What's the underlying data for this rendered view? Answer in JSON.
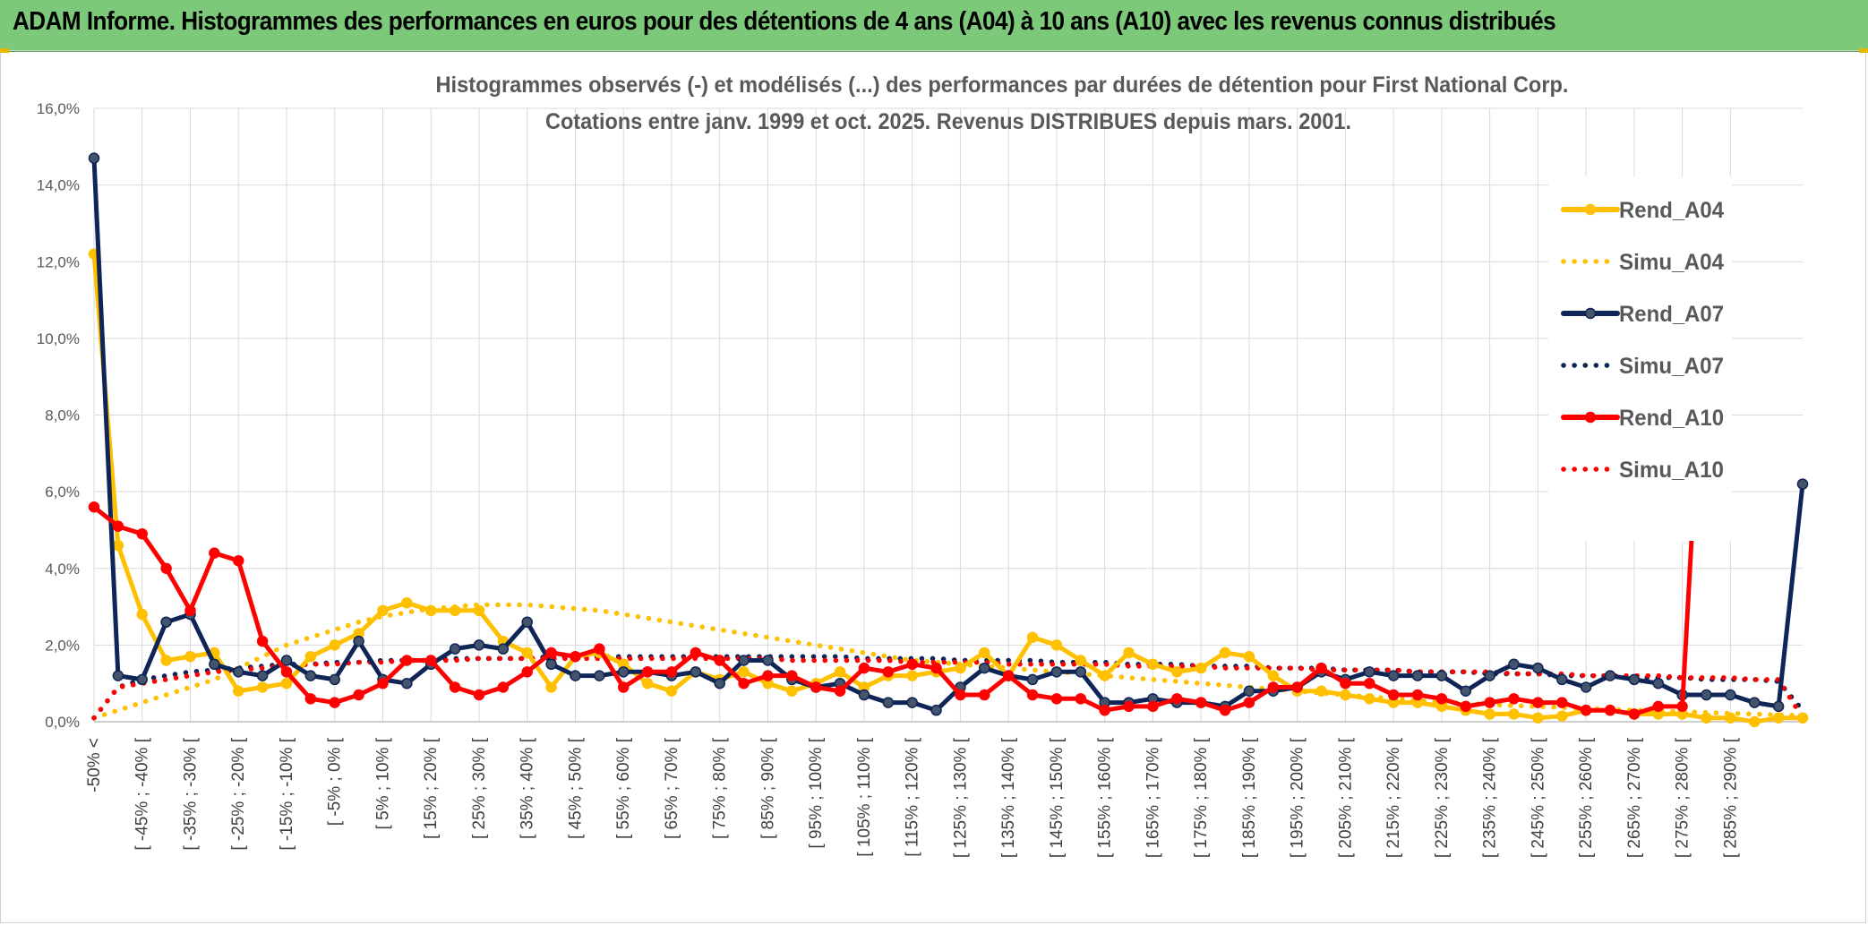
{
  "banner": {
    "title": "ADAM Informe. Histogrammes des performances en euros pour des détentions de 4 ans (A04) à 10 ans (A10) avec les revenus connus distribués"
  },
  "chart_data": {
    "type": "line",
    "title": "Histogrammes observés (-) et modélisés (...) des performances par durées de détention pour First National Corp.",
    "subtitle": "Cotations entre janv. 1999 et oct. 2025. Revenus DISTRIBUES depuis mars. 2001.",
    "ylim": [
      0,
      16
    ],
    "yticks": [
      "0,0%",
      "2,0%",
      "4,0%",
      "6,0%",
      "8,0%",
      "10,0%",
      "12,0%",
      "14,0%",
      "16,0%"
    ],
    "x_tick_labels": [
      "-50% <",
      "[ -45% ; -40% [",
      "[ -35% ; -30% [",
      "[ -25% ; -20% [",
      "[ -15% ; -10% [",
      "[ -5% ; 0% [",
      "[ 5% ; 10% [",
      "[ 15% ; 20% [",
      "[ 25% ; 30% [",
      "[ 35% ; 40% [",
      "[ 45% ; 50% [",
      "[ 55% ; 60% [",
      "[ 65% ; 70% [",
      "[ 75% ; 80% [",
      "[ 85% ; 90% [",
      "[ 95% ; 100% [",
      "[ 105% ; 110% [",
      "[ 115% ; 120% [",
      "[ 125% ; 130% [",
      "[ 135% ; 140% [",
      "[ 145% ; 150% [",
      "[ 155% ; 160% [",
      "[ 165% ; 170% [",
      "[ 175% ; 180% [",
      "[ 185% ; 190% [",
      "[ 195% ; 200% [",
      "[ 205% ; 210% [",
      "[ 215% ; 220% [",
      "[ 225% ; 230% [",
      "[ 235% ; 240% [",
      "[ 245% ; 250% [",
      "[ 255% ; 260% [",
      "[ 265% ; 270% [",
      "[ 275% ; 280% [",
      "[ 285% ; 290% ["
    ],
    "grid": true,
    "legend_position": "right",
    "series": [
      {
        "name": "Rend_A04",
        "style": "solid",
        "color": "#ffc000",
        "values": [
          12.2,
          4.6,
          2.8,
          1.6,
          1.7,
          1.8,
          0.8,
          0.9,
          1.0,
          1.7,
          2.0,
          2.3,
          2.9,
          3.1,
          2.9,
          2.9,
          2.9,
          2.1,
          1.8,
          0.9,
          1.7,
          1.8,
          1.5,
          1.0,
          0.8,
          1.3,
          1.1,
          1.3,
          1.0,
          0.8,
          1.0,
          1.3,
          0.9,
          1.2,
          1.2,
          1.3,
          1.4,
          1.8,
          1.2,
          2.2,
          2.0,
          1.6,
          1.2,
          1.8,
          1.5,
          1.3,
          1.4,
          1.8,
          1.7,
          1.2,
          0.8,
          0.8,
          0.7,
          0.6,
          0.5,
          0.5,
          0.4,
          0.3,
          0.2,
          0.2,
          0.1,
          0.15,
          0.3,
          0.3,
          0.2,
          0.2,
          0.2,
          0.1,
          0.1,
          0.0,
          0.1,
          0.1
        ]
      },
      {
        "name": "Simu_A04",
        "style": "dotted",
        "color": "#ffc000",
        "values": [
          0.1,
          0.3,
          0.5,
          0.7,
          0.9,
          1.1,
          1.4,
          1.7,
          2.0,
          2.2,
          2.4,
          2.6,
          2.75,
          2.85,
          2.95,
          3.0,
          3.05,
          3.05,
          3.05,
          3.0,
          2.95,
          2.9,
          2.8,
          2.7,
          2.6,
          2.5,
          2.4,
          2.3,
          2.2,
          2.1,
          2.0,
          1.9,
          1.8,
          1.7,
          1.6,
          1.55,
          1.5,
          1.45,
          1.4,
          1.35,
          1.3,
          1.25,
          1.2,
          1.15,
          1.1,
          1.05,
          1.0,
          0.95,
          0.9,
          0.85,
          0.8,
          0.75,
          0.7,
          0.65,
          0.6,
          0.55,
          0.5,
          0.48,
          0.45,
          0.42,
          0.4,
          0.37,
          0.35,
          0.32,
          0.3,
          0.28,
          0.26,
          0.24,
          0.22,
          0.2,
          0.18,
          0.16
        ]
      },
      {
        "name": "Rend_A07",
        "style": "solid",
        "color": "#0f2557",
        "values": [
          14.7,
          1.2,
          1.1,
          2.6,
          2.8,
          1.5,
          1.3,
          1.2,
          1.6,
          1.2,
          1.1,
          2.1,
          1.1,
          1.0,
          1.5,
          1.9,
          2.0,
          1.9,
          2.6,
          1.5,
          1.2,
          1.2,
          1.3,
          1.3,
          1.2,
          1.3,
          1.0,
          1.6,
          1.6,
          1.1,
          0.9,
          1.0,
          0.7,
          0.5,
          0.5,
          0.3,
          0.9,
          1.4,
          1.2,
          1.1,
          1.3,
          1.3,
          0.5,
          0.5,
          0.6,
          0.5,
          0.5,
          0.4,
          0.8,
          0.8,
          0.9,
          1.3,
          1.1,
          1.3,
          1.2,
          1.2,
          1.2,
          0.8,
          1.2,
          1.5,
          1.4,
          1.1,
          0.9,
          1.2,
          1.1,
          1.0,
          0.7,
          0.7,
          0.7,
          0.5,
          0.4,
          6.2
        ]
      },
      {
        "name": "Simu_A07",
        "style": "dotted",
        "color": "#0f2557",
        "values": [
          0.1,
          0.9,
          1.1,
          1.2,
          1.3,
          1.35,
          1.4,
          1.45,
          1.5,
          1.5,
          1.55,
          1.55,
          1.6,
          1.6,
          1.6,
          1.65,
          1.65,
          1.65,
          1.65,
          1.7,
          1.7,
          1.7,
          1.7,
          1.7,
          1.7,
          1.7,
          1.7,
          1.7,
          1.7,
          1.7,
          1.7,
          1.7,
          1.65,
          1.65,
          1.65,
          1.65,
          1.6,
          1.6,
          1.6,
          1.6,
          1.55,
          1.55,
          1.55,
          1.5,
          1.5,
          1.5,
          1.45,
          1.45,
          1.45,
          1.4,
          1.4,
          1.4,
          1.35,
          1.35,
          1.35,
          1.3,
          1.3,
          1.3,
          1.25,
          1.25,
          1.25,
          1.2,
          1.2,
          1.2,
          1.15,
          1.15,
          1.15,
          1.1,
          1.1,
          1.1,
          1.05,
          0.3
        ]
      },
      {
        "name": "Rend_A10",
        "style": "solid",
        "color": "#ff0000",
        "values": [
          5.6,
          5.1,
          4.9,
          4.0,
          2.9,
          4.4,
          4.2,
          2.1,
          1.3,
          0.6,
          0.5,
          0.7,
          1.0,
          1.6,
          1.6,
          0.9,
          0.7,
          0.9,
          1.3,
          1.8,
          1.7,
          1.9,
          0.9,
          1.3,
          1.3,
          1.8,
          1.6,
          1.0,
          1.2,
          1.2,
          0.9,
          0.8,
          1.4,
          1.3,
          1.5,
          1.4,
          0.7,
          0.7,
          1.2,
          0.7,
          0.6,
          0.6,
          0.3,
          0.4,
          0.4,
          0.6,
          0.5,
          0.3,
          0.5,
          0.9,
          0.9,
          1.4,
          1.0,
          1.0,
          0.7,
          0.7,
          0.6,
          0.4,
          0.5,
          0.6,
          0.5,
          0.5,
          0.3,
          0.3,
          0.2,
          0.4,
          0.4,
          11.7
        ]
      },
      {
        "name": "Simu_A10",
        "style": "dotted",
        "color": "#ff0000",
        "values": [
          0.1,
          0.9,
          1.0,
          1.1,
          1.2,
          1.3,
          1.35,
          1.4,
          1.45,
          1.5,
          1.5,
          1.55,
          1.55,
          1.6,
          1.6,
          1.6,
          1.65,
          1.65,
          1.65,
          1.65,
          1.65,
          1.65,
          1.65,
          1.65,
          1.65,
          1.65,
          1.65,
          1.65,
          1.65,
          1.6,
          1.6,
          1.6,
          1.6,
          1.6,
          1.55,
          1.55,
          1.55,
          1.55,
          1.5,
          1.5,
          1.5,
          1.5,
          1.5,
          1.45,
          1.45,
          1.45,
          1.45,
          1.4,
          1.4,
          1.4,
          1.4,
          1.35,
          1.35,
          1.35,
          1.35,
          1.3,
          1.3,
          1.3,
          1.3,
          1.25,
          1.25,
          1.25,
          1.2,
          1.2,
          1.2,
          1.2,
          1.15,
          1.15,
          1.15,
          1.1,
          1.1,
          0.1
        ]
      }
    ]
  }
}
